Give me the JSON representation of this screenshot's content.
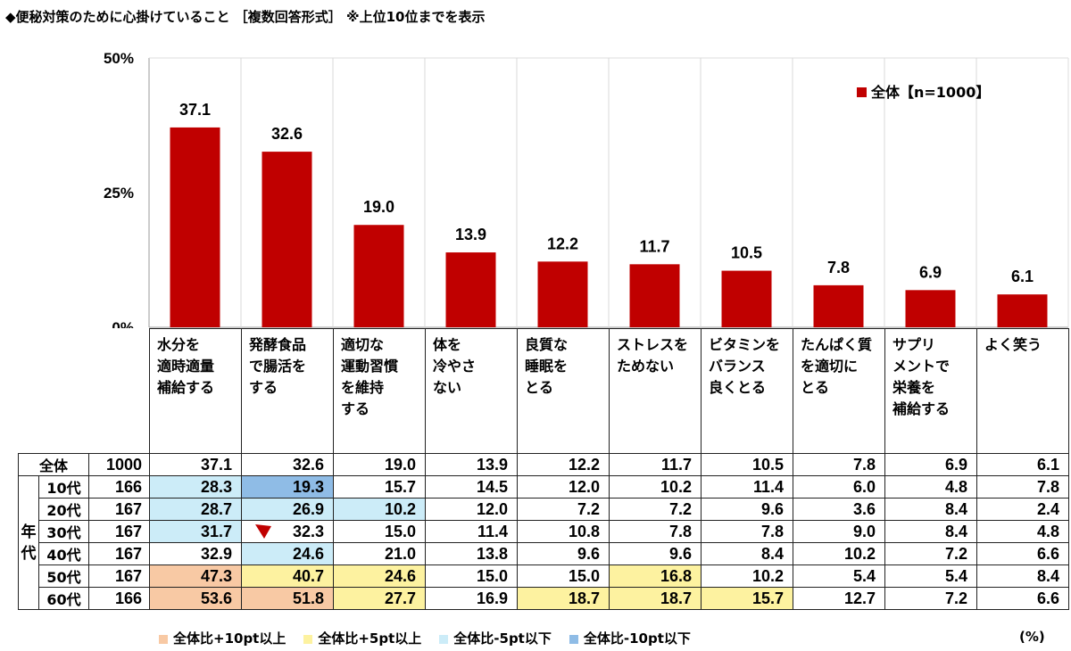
{
  "title": "◆便秘対策のために心掛けていること ［複数回答形式］ ※上位10位までを表示",
  "colors": {
    "bar": "#c00000",
    "plus10": "#f8c9a4",
    "plus5": "#fdf2a0",
    "minus5": "#ccecf8",
    "minus10": "#8fbce6"
  },
  "chart_data": {
    "type": "bar",
    "title": "◆便秘対策のために心掛けていること ［複数回答形式］ ※上位10位までを表示",
    "categories": [
      "水分を適時適量補給する",
      "発酵食品で腸活をする",
      "適切な運動習慣を維持する",
      "体を冷やさない",
      "良質な睡眠をとる",
      "ストレスをためない",
      "ビタミンをバランス良くとる",
      "たんぱく質を適切にとる",
      "サプリメントで栄養を補給する",
      "よく笑う"
    ],
    "series": [
      {
        "name": "全体【n=1000】",
        "values": [
          37.1,
          32.6,
          19.0,
          13.9,
          12.2,
          11.7,
          10.5,
          7.8,
          6.9,
          6.1
        ]
      }
    ],
    "value_labels": [
      "37.1",
      "32.6",
      "19.0",
      "13.9",
      "12.2",
      "11.7",
      "10.5",
      "7.8",
      "6.9",
      "6.1"
    ],
    "y_ticks": [
      "0%",
      "25%",
      "50%"
    ],
    "ylim": [
      0,
      50
    ],
    "grid": "vertical-category-separators",
    "legend_position": "top-right",
    "legend": "全体【n=1000】"
  },
  "table": {
    "headers": [
      [
        "水分を",
        "適時適量",
        "補給する"
      ],
      [
        "発酵食品",
        "で腸活を",
        "する"
      ],
      [
        "適切な",
        "運動習慣",
        "を維持",
        "する"
      ],
      [
        "体を",
        "冷やさ",
        "ない"
      ],
      [
        "良質な",
        "睡眠を",
        "とる"
      ],
      [
        "ストレスを",
        "ためない"
      ],
      [
        "ビタミンを",
        "バランス",
        "良くとる"
      ],
      [
        "たんぱく質",
        "を適切に",
        "とる"
      ],
      [
        "サプリ",
        "メントで",
        "栄養を",
        "補給する"
      ],
      [
        "よく笑う"
      ]
    ],
    "group_label": [
      "年",
      "代"
    ],
    "rows": [
      {
        "label": "全体",
        "n": "1000",
        "values": [
          "37.1",
          "32.6",
          "19.0",
          "13.9",
          "12.2",
          "11.7",
          "10.5",
          "7.8",
          "6.9",
          "6.1"
        ],
        "highlight": [
          "",
          "",
          "",
          "",
          "",
          "",
          "",
          "",
          "",
          ""
        ]
      },
      {
        "label": "10代",
        "n": "166",
        "values": [
          "28.3",
          "19.3",
          "15.7",
          "14.5",
          "12.0",
          "10.2",
          "11.4",
          "6.0",
          "4.8",
          "7.8"
        ],
        "highlight": [
          "c3",
          "c4",
          "",
          "",
          "",
          "",
          "",
          "",
          "",
          ""
        ]
      },
      {
        "label": "20代",
        "n": "167",
        "values": [
          "28.7",
          "26.9",
          "10.2",
          "12.0",
          "7.2",
          "7.2",
          "9.6",
          "3.6",
          "8.4",
          "2.4"
        ],
        "highlight": [
          "c3",
          "c3",
          "c3",
          "",
          "",
          "",
          "",
          "",
          "",
          ""
        ]
      },
      {
        "label": "30代",
        "n": "167",
        "values": [
          "31.7",
          "32.3",
          "15.0",
          "11.4",
          "10.8",
          "7.8",
          "7.8",
          "9.0",
          "8.4",
          "4.8"
        ],
        "highlight": [
          "c3",
          "",
          "",
          "",
          "",
          "",
          "",
          "",
          "",
          ""
        ]
      },
      {
        "label": "40代",
        "n": "167",
        "values": [
          "32.9",
          "24.6",
          "21.0",
          "13.8",
          "9.6",
          "9.6",
          "8.4",
          "10.2",
          "7.2",
          "6.6"
        ],
        "highlight": [
          "",
          "c3",
          "",
          "",
          "",
          "",
          "",
          "",
          "",
          ""
        ]
      },
      {
        "label": "50代",
        "n": "167",
        "values": [
          "47.3",
          "40.7",
          "24.6",
          "15.0",
          "15.0",
          "16.8",
          "10.2",
          "5.4",
          "5.4",
          "8.4"
        ],
        "highlight": [
          "c1",
          "c2",
          "c2",
          "",
          "",
          "c2",
          "",
          "",
          "",
          ""
        ]
      },
      {
        "label": "60代",
        "n": "166",
        "values": [
          "53.6",
          "51.8",
          "27.7",
          "16.9",
          "18.7",
          "18.7",
          "15.7",
          "12.7",
          "7.2",
          "6.6"
        ],
        "highlight": [
          "c1",
          "c1",
          "c2",
          "",
          "c2",
          "c2",
          "c2",
          "",
          "",
          ""
        ]
      }
    ]
  },
  "footer_legend": [
    {
      "label": "全体比+10pt以上",
      "color": "#f8c9a4"
    },
    {
      "label": "全体比+5pt以上",
      "color": "#fdf2a0"
    },
    {
      "label": "全体比-5pt以下",
      "color": "#ccecf8"
    },
    {
      "label": "全体比-10pt以下",
      "color": "#8fbce6"
    }
  ],
  "unit": "(%)"
}
